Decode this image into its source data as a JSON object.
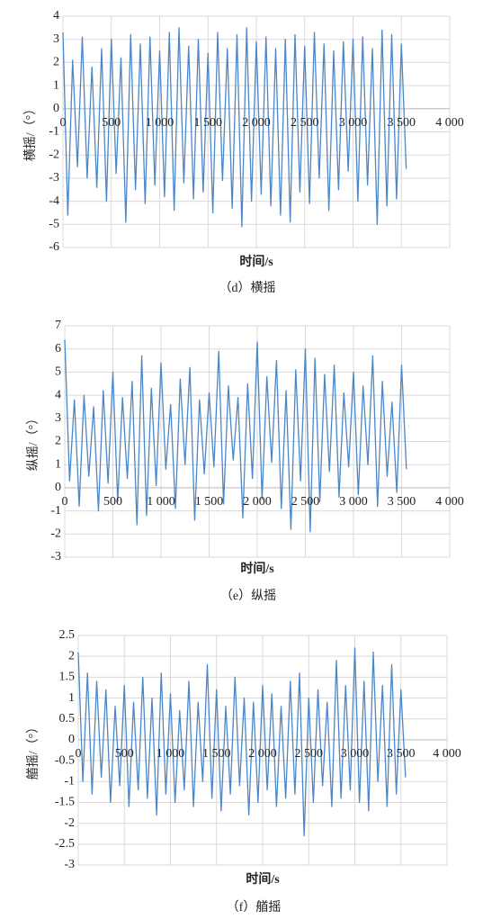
{
  "chart_data": [
    {
      "type": "line",
      "x_label": "时间/s",
      "y_label": "横摇/（°）",
      "caption": "（d）横摇",
      "color": "#4a86c8",
      "grid": true,
      "xlim": [
        0,
        4000
      ],
      "xticks": [
        0,
        500,
        {
          "value": 1000,
          "label": "1 000"
        },
        {
          "value": 1500,
          "label": "1 500"
        },
        {
          "value": 2000,
          "label": "2 000"
        },
        {
          "value": 2500,
          "label": "2 500"
        },
        {
          "value": 3000,
          "label": "3 000"
        },
        {
          "value": 3500,
          "label": "3 500"
        },
        {
          "value": 4000,
          "label": "4 000"
        }
      ],
      "ylim": [
        -6,
        4
      ],
      "yticks": [
        -6,
        -5,
        -4,
        -3,
        -2,
        -1,
        0,
        1,
        2,
        3,
        4
      ],
      "x": [
        0,
        50,
        100,
        150,
        200,
        250,
        300,
        350,
        400,
        450,
        500,
        550,
        600,
        650,
        700,
        750,
        800,
        850,
        900,
        950,
        1000,
        1050,
        1100,
        1150,
        1200,
        1250,
        1300,
        1350,
        1400,
        1450,
        1500,
        1550,
        1600,
        1650,
        1700,
        1750,
        1800,
        1850,
        1900,
        1950,
        2000,
        2050,
        2100,
        2150,
        2200,
        2250,
        2300,
        2350,
        2400,
        2450,
        2500,
        2550,
        2600,
        2650,
        2700,
        2750,
        2800,
        2850,
        2900,
        2950,
        3000,
        3050,
        3100,
        3150,
        3200,
        3250,
        3300,
        3350,
        3400,
        3450,
        3500,
        3550
      ],
      "values": [
        3.3,
        -4.6,
        2.1,
        -2.5,
        3.1,
        -3.0,
        1.8,
        -3.4,
        2.6,
        -4.0,
        3.0,
        -2.8,
        2.2,
        -4.9,
        3.2,
        -3.5,
        2.8,
        -4.1,
        3.1,
        -3.3,
        2.5,
        -3.8,
        3.3,
        -4.4,
        3.5,
        -3.2,
        2.7,
        -3.9,
        3.0,
        -3.6,
        2.4,
        -4.5,
        3.3,
        -3.1,
        2.6,
        -4.3,
        3.2,
        -5.1,
        3.5,
        -4.0,
        2.9,
        -3.7,
        3.1,
        -4.2,
        2.6,
        -4.6,
        3.0,
        -4.9,
        3.2,
        -3.6,
        2.7,
        -4.1,
        3.3,
        -3.0,
        2.8,
        -4.4,
        2.5,
        -3.5,
        2.9,
        -2.7,
        3.0,
        -4.0,
        3.1,
        -3.3,
        2.6,
        -5.0,
        3.4,
        -4.2,
        3.2,
        -3.9,
        2.8,
        -2.6
      ]
    },
    {
      "type": "line",
      "x_label": "时间/s",
      "y_label": "纵摇/（°）",
      "caption": "（e）纵摇",
      "color": "#4a86c8",
      "grid": true,
      "xlim": [
        0,
        4000
      ],
      "xticks": [
        0,
        500,
        {
          "value": 1000,
          "label": "1 000"
        },
        {
          "value": 1500,
          "label": "1 500"
        },
        {
          "value": 2000,
          "label": "2 000"
        },
        {
          "value": 2500,
          "label": "2 500"
        },
        {
          "value": 3000,
          "label": "3 000"
        },
        {
          "value": 3500,
          "label": "3 500"
        },
        {
          "value": 4000,
          "label": "4 000"
        }
      ],
      "ylim": [
        -3,
        7
      ],
      "yticks": [
        -3,
        -2,
        -1,
        0,
        1,
        2,
        3,
        4,
        5,
        6,
        7
      ],
      "x": [
        0,
        50,
        100,
        150,
        200,
        250,
        300,
        350,
        400,
        450,
        500,
        550,
        600,
        650,
        700,
        750,
        800,
        850,
        900,
        950,
        1000,
        1050,
        1100,
        1150,
        1200,
        1250,
        1300,
        1350,
        1400,
        1450,
        1500,
        1550,
        1600,
        1650,
        1700,
        1750,
        1800,
        1850,
        1900,
        1950,
        2000,
        2050,
        2100,
        2150,
        2200,
        2250,
        2300,
        2350,
        2400,
        2450,
        2500,
        2550,
        2600,
        2650,
        2700,
        2750,
        2800,
        2850,
        2900,
        2950,
        3000,
        3050,
        3100,
        3150,
        3200,
        3250,
        3300,
        3350,
        3400,
        3450,
        3500,
        3550
      ],
      "values": [
        6.4,
        0.3,
        3.8,
        -0.8,
        4.0,
        0.5,
        3.5,
        -1.0,
        4.2,
        0.2,
        5.0,
        -0.6,
        3.9,
        0.4,
        4.6,
        -1.6,
        5.7,
        -1.2,
        4.3,
        0.1,
        5.4,
        0.8,
        3.6,
        -0.9,
        4.7,
        1.0,
        5.2,
        -1.4,
        3.8,
        0.6,
        4.1,
        0.9,
        5.9,
        -0.7,
        4.4,
        1.2,
        3.9,
        -1.3,
        4.5,
        0.4,
        6.3,
        -0.5,
        4.8,
        1.1,
        5.5,
        -0.9,
        4.2,
        -1.8,
        5.1,
        0.3,
        6.0,
        -1.9,
        5.6,
        -0.6,
        4.9,
        0.7,
        5.3,
        -0.4,
        4.1,
        0.9,
        5.0,
        -0.3,
        4.4,
        1.0,
        5.7,
        -0.8,
        4.6,
        0.5,
        3.7,
        -0.2,
        5.3,
        0.8
      ]
    },
    {
      "type": "line",
      "x_label": "时间/s",
      "y_label": "艏摇/（°）",
      "caption": "（f）艏摇",
      "color": "#4a86c8",
      "grid": true,
      "xlim": [
        0,
        4000
      ],
      "xticks": [
        0,
        500,
        {
          "value": 1000,
          "label": "1 000"
        },
        {
          "value": 1500,
          "label": "1 500"
        },
        {
          "value": 2000,
          "label": "2 000"
        },
        {
          "value": 2500,
          "label": "2 500"
        },
        {
          "value": 3000,
          "label": "3 000"
        },
        {
          "value": 3500,
          "label": "3 500"
        },
        {
          "value": 4000,
          "label": "4 000"
        }
      ],
      "ylim": [
        -3,
        2.5
      ],
      "yticks": [
        -3,
        -2.5,
        -2,
        -1.5,
        -1,
        -0.5,
        0,
        0.5,
        1,
        1.5,
        2,
        2.5
      ],
      "x": [
        0,
        50,
        100,
        150,
        200,
        250,
        300,
        350,
        400,
        450,
        500,
        550,
        600,
        650,
        700,
        750,
        800,
        850,
        900,
        950,
        1000,
        1050,
        1100,
        1150,
        1200,
        1250,
        1300,
        1350,
        1400,
        1450,
        1500,
        1550,
        1600,
        1650,
        1700,
        1750,
        1800,
        1850,
        1900,
        1950,
        2000,
        2050,
        2100,
        2150,
        2200,
        2250,
        2300,
        2350,
        2400,
        2450,
        2500,
        2550,
        2600,
        2650,
        2700,
        2750,
        2800,
        2850,
        2900,
        2950,
        3000,
        3050,
        3100,
        3150,
        3200,
        3250,
        3300,
        3350,
        3400,
        3450,
        3500,
        3550
      ],
      "values": [
        2.1,
        -1.0,
        1.6,
        -1.3,
        1.4,
        -0.9,
        1.2,
        -1.5,
        0.8,
        -1.1,
        1.3,
        -1.6,
        0.9,
        -1.2,
        1.5,
        -1.4,
        1.0,
        -1.8,
        1.6,
        -1.3,
        1.1,
        -1.5,
        0.7,
        -1.2,
        1.4,
        -1.6,
        0.9,
        -1.0,
        1.8,
        -1.4,
        1.2,
        -1.7,
        0.8,
        -1.3,
        1.5,
        -1.1,
        1.0,
        -1.8,
        0.9,
        -1.5,
        1.3,
        -1.2,
        1.1,
        -1.6,
        0.8,
        -1.4,
        1.4,
        -1.3,
        1.6,
        -2.3,
        1.0,
        -1.5,
        1.2,
        -1.1,
        0.9,
        -1.6,
        1.9,
        -1.4,
        1.3,
        -1.2,
        2.2,
        -1.5,
        1.4,
        -1.7,
        2.1,
        -1.0,
        1.3,
        -1.6,
        1.8,
        -1.3,
        1.2,
        -0.9
      ]
    }
  ]
}
